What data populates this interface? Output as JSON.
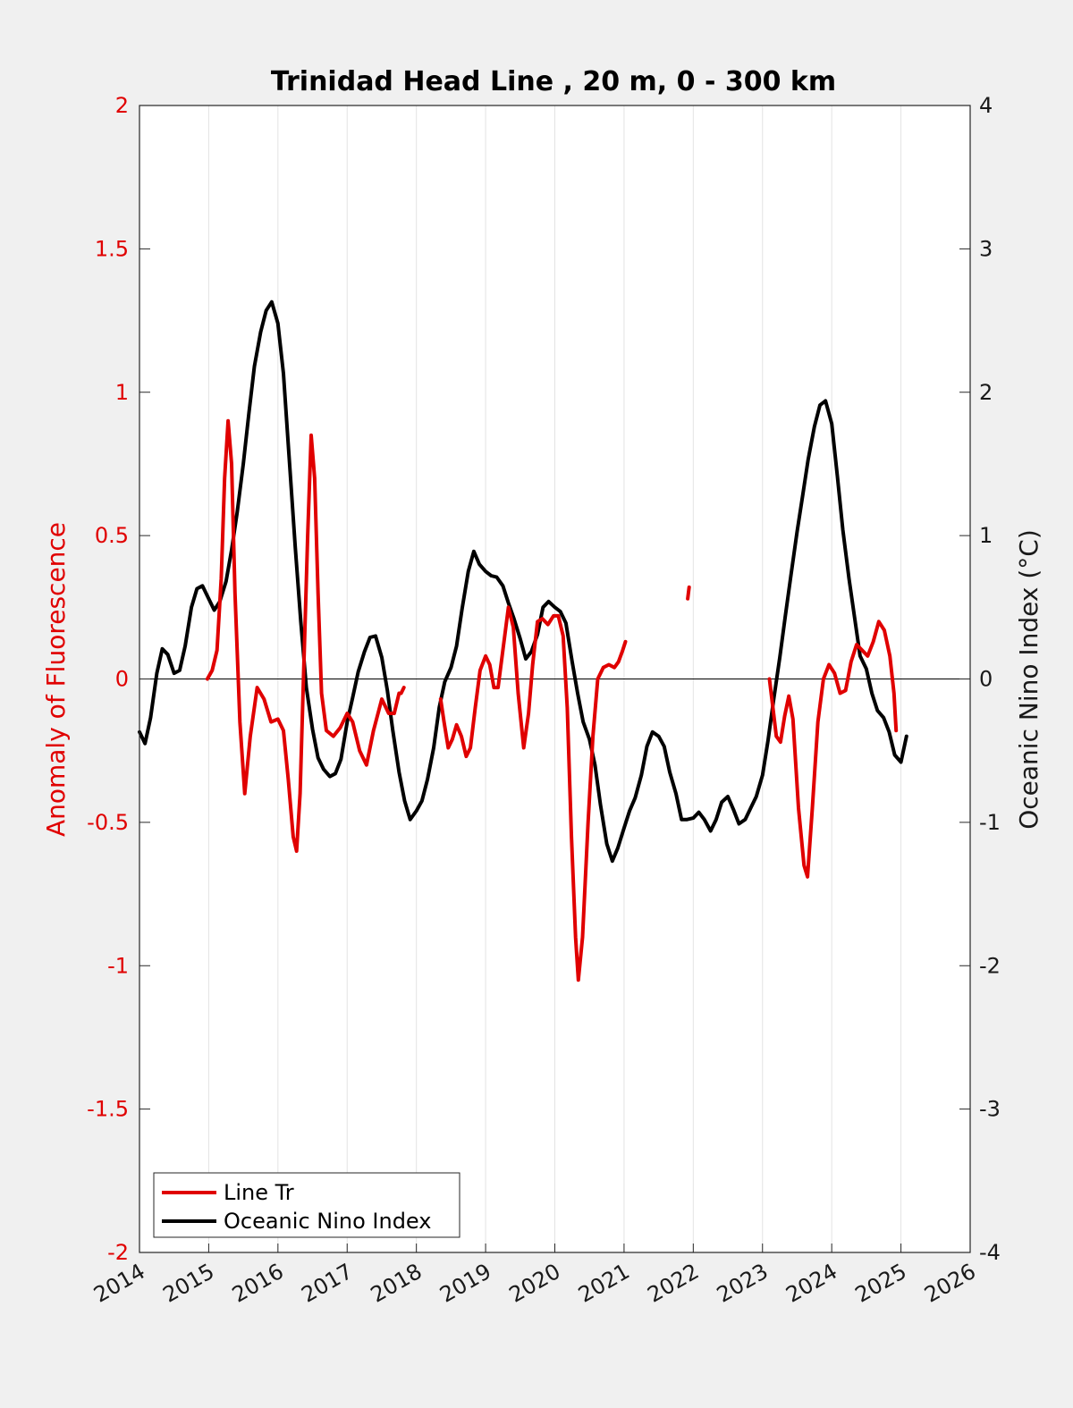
{
  "chart_data": {
    "type": "line",
    "title": "Trinidad Head Line , 20 m, 0 - 300 km",
    "x_ticks": [
      "2014",
      "2015",
      "2016",
      "2017",
      "2018",
      "2019",
      "2020",
      "2021",
      "2022",
      "2023",
      "2024",
      "2025",
      "2026"
    ],
    "xlim": [
      2014,
      2026
    ],
    "grid": "vertical",
    "left_axis": {
      "label": "Anomaly of Fluorescence",
      "ylim": [
        -2,
        2
      ],
      "ticks": [
        "-2",
        "-1.5",
        "-1",
        "-0.5",
        "0",
        "0.5",
        "1",
        "1.5",
        "2"
      ],
      "color": "#e00000"
    },
    "right_axis": {
      "label": "Oceanic Nino Index (°C)",
      "ylim": [
        -4,
        4
      ],
      "ticks": [
        "-4",
        "-3",
        "-2",
        "-1",
        "0",
        "1",
        "2",
        "3",
        "4"
      ],
      "color": "#1a1a1a"
    },
    "legend_position": "bottom-left",
    "series": [
      {
        "name": "Line Tr",
        "axis": "left",
        "color": "#e00000",
        "segments": [
          [
            [
              2014.98,
              0.0
            ],
            [
              2015.05,
              0.03
            ],
            [
              2015.12,
              0.1
            ],
            [
              2015.18,
              0.35
            ],
            [
              2015.23,
              0.7
            ],
            [
              2015.28,
              0.9
            ],
            [
              2015.33,
              0.75
            ],
            [
              2015.38,
              0.3
            ],
            [
              2015.45,
              -0.15
            ],
            [
              2015.52,
              -0.4
            ],
            [
              2015.6,
              -0.2
            ],
            [
              2015.7,
              -0.03
            ],
            [
              2015.8,
              -0.07
            ],
            [
              2015.9,
              -0.15
            ],
            [
              2016.0,
              -0.14
            ],
            [
              2016.08,
              -0.18
            ],
            [
              2016.15,
              -0.35
            ],
            [
              2016.22,
              -0.55
            ],
            [
              2016.27,
              -0.6
            ],
            [
              2016.32,
              -0.4
            ],
            [
              2016.38,
              0.1
            ],
            [
              2016.43,
              0.5
            ],
            [
              2016.48,
              0.85
            ],
            [
              2016.53,
              0.7
            ],
            [
              2016.58,
              0.3
            ],
            [
              2016.63,
              -0.05
            ],
            [
              2016.7,
              -0.18
            ],
            [
              2016.8,
              -0.2
            ],
            [
              2016.9,
              -0.17
            ],
            [
              2017.0,
              -0.12
            ],
            [
              2017.08,
              -0.15
            ],
            [
              2017.18,
              -0.25
            ],
            [
              2017.28,
              -0.3
            ],
            [
              2017.38,
              -0.18
            ],
            [
              2017.5,
              -0.07
            ],
            [
              2017.6,
              -0.12
            ],
            [
              2017.68,
              -0.12
            ],
            [
              2017.75,
              -0.05
            ]
          ],
          [
            [
              2017.78,
              -0.05
            ],
            [
              2017.82,
              -0.03
            ]
          ],
          [
            [
              2018.35,
              -0.07
            ],
            [
              2018.4,
              -0.15
            ],
            [
              2018.46,
              -0.24
            ],
            [
              2018.52,
              -0.21
            ],
            [
              2018.58,
              -0.16
            ],
            [
              2018.65,
              -0.2
            ],
            [
              2018.72,
              -0.27
            ],
            [
              2018.78,
              -0.24
            ],
            [
              2018.85,
              -0.1
            ],
            [
              2018.92,
              0.03
            ],
            [
              2019.0,
              0.08
            ],
            [
              2019.06,
              0.05
            ],
            [
              2019.12,
              -0.03
            ],
            [
              2019.18,
              -0.03
            ],
            [
              2019.25,
              0.1
            ],
            [
              2019.33,
              0.25
            ],
            [
              2019.4,
              0.18
            ],
            [
              2019.47,
              -0.05
            ],
            [
              2019.55,
              -0.24
            ],
            [
              2019.62,
              -0.12
            ],
            [
              2019.68,
              0.05
            ],
            [
              2019.75,
              0.2
            ],
            [
              2019.82,
              0.21
            ],
            [
              2019.9,
              0.19
            ],
            [
              2019.98,
              0.22
            ],
            [
              2020.05,
              0.22
            ],
            [
              2020.12,
              0.15
            ],
            [
              2020.18,
              -0.1
            ],
            [
              2020.24,
              -0.55
            ],
            [
              2020.3,
              -0.9
            ],
            [
              2020.34,
              -1.05
            ],
            [
              2020.4,
              -0.9
            ],
            [
              2020.48,
              -0.5
            ],
            [
              2020.55,
              -0.2
            ],
            [
              2020.62,
              0.0
            ],
            [
              2020.7,
              0.04
            ],
            [
              2020.78,
              0.05
            ],
            [
              2020.86,
              0.04
            ],
            [
              2020.92,
              0.06
            ],
            [
              2020.98,
              0.1
            ],
            [
              2021.02,
              0.13
            ]
          ],
          [
            [
              2021.92,
              0.28
            ],
            [
              2021.94,
              0.32
            ]
          ],
          [
            [
              2023.1,
              0.0
            ],
            [
              2023.15,
              -0.1
            ],
            [
              2023.2,
              -0.2
            ],
            [
              2023.26,
              -0.22
            ],
            [
              2023.32,
              -0.13
            ],
            [
              2023.38,
              -0.06
            ],
            [
              2023.44,
              -0.14
            ],
            [
              2023.52,
              -0.45
            ],
            [
              2023.6,
              -0.65
            ],
            [
              2023.65,
              -0.69
            ],
            [
              2023.72,
              -0.45
            ],
            [
              2023.8,
              -0.15
            ],
            [
              2023.88,
              0.0
            ],
            [
              2023.96,
              0.05
            ],
            [
              2024.04,
              0.02
            ],
            [
              2024.12,
              -0.05
            ],
            [
              2024.2,
              -0.04
            ],
            [
              2024.28,
              0.06
            ],
            [
              2024.36,
              0.12
            ],
            [
              2024.44,
              0.1
            ],
            [
              2024.52,
              0.08
            ],
            [
              2024.6,
              0.13
            ],
            [
              2024.68,
              0.2
            ],
            [
              2024.76,
              0.17
            ],
            [
              2024.84,
              0.08
            ],
            [
              2024.9,
              -0.05
            ],
            [
              2024.93,
              -0.18
            ]
          ]
        ]
      },
      {
        "name": "Oceanic Nino Index",
        "axis": "right",
        "color": "#000000",
        "segments": [
          [
            [
              2014.0,
              -0.37
            ],
            [
              2014.08,
              -0.45
            ],
            [
              2014.16,
              -0.27
            ],
            [
              2014.25,
              0.04
            ],
            [
              2014.33,
              0.21
            ],
            [
              2014.41,
              0.17
            ],
            [
              2014.5,
              0.04
            ],
            [
              2014.58,
              0.06
            ],
            [
              2014.66,
              0.23
            ],
            [
              2014.75,
              0.5
            ],
            [
              2014.83,
              0.63
            ],
            [
              2014.91,
              0.65
            ],
            [
              2015.0,
              0.56
            ],
            [
              2015.08,
              0.48
            ],
            [
              2015.16,
              0.54
            ],
            [
              2015.25,
              0.68
            ],
            [
              2015.33,
              0.9
            ],
            [
              2015.41,
              1.16
            ],
            [
              2015.5,
              1.5
            ],
            [
              2015.58,
              1.85
            ],
            [
              2015.66,
              2.18
            ],
            [
              2015.75,
              2.42
            ],
            [
              2015.83,
              2.57
            ],
            [
              2015.91,
              2.63
            ],
            [
              2016.0,
              2.48
            ],
            [
              2016.08,
              2.13
            ],
            [
              2016.16,
              1.56
            ],
            [
              2016.25,
              0.92
            ],
            [
              2016.33,
              0.4
            ],
            [
              2016.41,
              -0.06
            ],
            [
              2016.5,
              -0.35
            ],
            [
              2016.58,
              -0.55
            ],
            [
              2016.66,
              -0.63
            ],
            [
              2016.75,
              -0.68
            ],
            [
              2016.83,
              -0.66
            ],
            [
              2016.91,
              -0.56
            ],
            [
              2017.0,
              -0.3
            ],
            [
              2017.08,
              -0.13
            ],
            [
              2017.16,
              0.05
            ],
            [
              2017.25,
              0.19
            ],
            [
              2017.33,
              0.29
            ],
            [
              2017.41,
              0.3
            ],
            [
              2017.5,
              0.15
            ],
            [
              2017.58,
              -0.08
            ],
            [
              2017.66,
              -0.36
            ],
            [
              2017.75,
              -0.65
            ],
            [
              2017.83,
              -0.85
            ],
            [
              2017.91,
              -0.98
            ],
            [
              2018.0,
              -0.92
            ],
            [
              2018.08,
              -0.85
            ],
            [
              2018.16,
              -0.7
            ],
            [
              2018.25,
              -0.48
            ],
            [
              2018.33,
              -0.2
            ],
            [
              2018.41,
              -0.02
            ],
            [
              2018.5,
              0.08
            ],
            [
              2018.58,
              0.23
            ],
            [
              2018.66,
              0.49
            ],
            [
              2018.75,
              0.75
            ],
            [
              2018.83,
              0.89
            ],
            [
              2018.91,
              0.8
            ],
            [
              2019.0,
              0.75
            ],
            [
              2019.08,
              0.72
            ],
            [
              2019.16,
              0.71
            ],
            [
              2019.25,
              0.65
            ],
            [
              2019.33,
              0.53
            ],
            [
              2019.41,
              0.42
            ],
            [
              2019.5,
              0.28
            ],
            [
              2019.58,
              0.14
            ],
            [
              2019.66,
              0.19
            ],
            [
              2019.75,
              0.31
            ],
            [
              2019.83,
              0.5
            ],
            [
              2019.91,
              0.54
            ],
            [
              2020.0,
              0.5
            ],
            [
              2020.08,
              0.47
            ],
            [
              2020.16,
              0.39
            ],
            [
              2020.25,
              0.12
            ],
            [
              2020.33,
              -0.1
            ],
            [
              2020.41,
              -0.3
            ],
            [
              2020.5,
              -0.42
            ],
            [
              2020.58,
              -0.6
            ],
            [
              2020.66,
              -0.88
            ],
            [
              2020.75,
              -1.15
            ],
            [
              2020.83,
              -1.27
            ],
            [
              2020.91,
              -1.18
            ],
            [
              2021.0,
              -1.04
            ],
            [
              2021.08,
              -0.92
            ],
            [
              2021.16,
              -0.83
            ],
            [
              2021.25,
              -0.67
            ],
            [
              2021.33,
              -0.47
            ],
            [
              2021.41,
              -0.37
            ],
            [
              2021.5,
              -0.4
            ],
            [
              2021.58,
              -0.47
            ],
            [
              2021.66,
              -0.65
            ],
            [
              2021.75,
              -0.8
            ],
            [
              2021.83,
              -0.98
            ],
            [
              2021.91,
              -0.98
            ],
            [
              2022.0,
              -0.97
            ],
            [
              2022.08,
              -0.93
            ],
            [
              2022.16,
              -0.98
            ],
            [
              2022.25,
              -1.06
            ],
            [
              2022.33,
              -0.98
            ],
            [
              2022.41,
              -0.86
            ],
            [
              2022.5,
              -0.82
            ],
            [
              2022.58,
              -0.91
            ],
            [
              2022.66,
              -1.01
            ],
            [
              2022.75,
              -0.98
            ],
            [
              2022.83,
              -0.9
            ],
            [
              2022.91,
              -0.82
            ],
            [
              2023.0,
              -0.67
            ],
            [
              2023.08,
              -0.43
            ],
            [
              2023.16,
              -0.15
            ],
            [
              2023.25,
              0.15
            ],
            [
              2023.33,
              0.44
            ],
            [
              2023.41,
              0.72
            ],
            [
              2023.5,
              1.03
            ],
            [
              2023.58,
              1.28
            ],
            [
              2023.66,
              1.53
            ],
            [
              2023.75,
              1.76
            ],
            [
              2023.83,
              1.91
            ],
            [
              2023.91,
              1.94
            ],
            [
              2024.0,
              1.78
            ],
            [
              2024.08,
              1.42
            ],
            [
              2024.16,
              1.04
            ],
            [
              2024.25,
              0.7
            ],
            [
              2024.33,
              0.43
            ],
            [
              2024.41,
              0.16
            ],
            [
              2024.5,
              0.07
            ],
            [
              2024.58,
              -0.1
            ],
            [
              2024.66,
              -0.22
            ],
            [
              2024.75,
              -0.27
            ],
            [
              2024.83,
              -0.37
            ],
            [
              2024.91,
              -0.53
            ],
            [
              2025.0,
              -0.58
            ],
            [
              2025.08,
              -0.4
            ]
          ]
        ]
      }
    ]
  }
}
